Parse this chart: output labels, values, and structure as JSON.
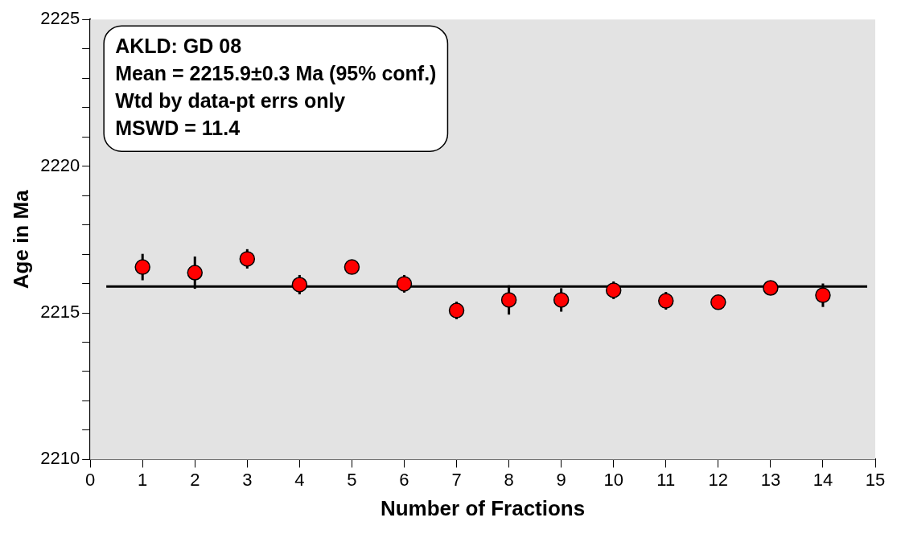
{
  "chart_data": {
    "type": "scatter",
    "xlabel": "Number of Fractions",
    "ylabel": "Age in Ma",
    "x": [
      1,
      2,
      3,
      4,
      5,
      6,
      7,
      8,
      9,
      10,
      11,
      12,
      13,
      14
    ],
    "series": [
      {
        "color": "#ff0000",
        "values": [
          2216.56,
          2216.37,
          2216.84,
          2215.96,
          2216.56,
          2215.99,
          2215.08,
          2215.44,
          2215.44,
          2215.77,
          2215.41,
          2215.36,
          2215.85,
          2215.6
        ],
        "errors": [
          0.45,
          0.55,
          0.33,
          0.33,
          0.2,
          0.3,
          0.3,
          0.5,
          0.4,
          0.3,
          0.3,
          null,
          null,
          0.4
        ]
      }
    ],
    "xlim": [
      0,
      15
    ],
    "xticks": [
      0,
      1,
      2,
      3,
      4,
      5,
      6,
      7,
      8,
      9,
      10,
      11,
      12,
      13,
      14,
      15
    ],
    "ylim": [
      2210,
      2225
    ],
    "yticks": [
      2210,
      {
        "value": 2211,
        "label": null
      },
      {
        "value": 2212,
        "label": null
      },
      {
        "value": 2213,
        "label": null
      },
      {
        "value": 2214,
        "label": null
      },
      2215,
      {
        "value": 2216,
        "label": null
      },
      {
        "value": 2217,
        "label": null
      },
      {
        "value": 2218,
        "label": null
      },
      {
        "value": 2219,
        "label": null
      },
      2220,
      {
        "value": 2221,
        "label": null
      },
      {
        "value": 2222,
        "label": null
      },
      {
        "value": 2223,
        "label": null
      },
      {
        "value": 2224,
        "label": null
      },
      2225
    ],
    "ref_lines": [
      {
        "axis": "y",
        "value": 2215.9,
        "color": "#000000"
      }
    ],
    "annotations": [
      "AKLD: GD 08",
      "Mean = 2215.9±0.3 Ma (95% conf.)",
      "Wtd by data-pt errs only",
      "MSWD = 11.4"
    ],
    "grid": false,
    "legend": false,
    "marker": "circle"
  }
}
